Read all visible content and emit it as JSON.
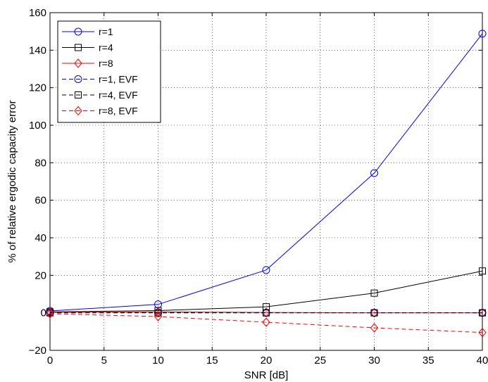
{
  "chart_data": {
    "type": "line",
    "xlabel": "SNR [dB]",
    "ylabel": "% of relative ergodic capacity error",
    "xlim": [
      0,
      40
    ],
    "ylim": [
      -20,
      160
    ],
    "xticks": [
      0,
      5,
      10,
      15,
      20,
      25,
      30,
      35,
      40
    ],
    "yticks": [
      -20,
      0,
      20,
      40,
      60,
      80,
      100,
      120,
      140,
      160
    ],
    "xtick_labels": [
      "0",
      "5",
      "10",
      "15",
      "20",
      "25",
      "30",
      "35",
      "40"
    ],
    "ytick_labels": [
      "−20",
      "0",
      "20",
      "40",
      "60",
      "80",
      "100",
      "120",
      "140",
      "160"
    ],
    "grid": true,
    "legend_position": "top-left",
    "x": [
      0,
      10,
      20,
      30,
      40
    ],
    "series": [
      {
        "name": "r=1",
        "values": [
          1.0,
          4.5,
          22.8,
          74.5,
          148.8
        ],
        "color": "#0000ff",
        "marker": "circle",
        "dashed": false
      },
      {
        "name": "r=4",
        "values": [
          0.5,
          1.2,
          3.2,
          10.5,
          22.3
        ],
        "color": "#000000",
        "marker": "square",
        "dashed": false
      },
      {
        "name": "r=8",
        "values": [
          0.3,
          0.5,
          0.2,
          0.0,
          0.0
        ],
        "color": "#ff0000",
        "marker": "diamond",
        "dashed": false
      },
      {
        "name": "r=1, EVF",
        "values": [
          0.0,
          0.0,
          0.0,
          0.0,
          0.0
        ],
        "color": "#0000ff",
        "marker": "circle",
        "dashed": true
      },
      {
        "name": "r=4, EVF",
        "values": [
          0.0,
          0.0,
          0.0,
          0.0,
          0.0
        ],
        "color": "#000000",
        "marker": "square",
        "dashed": true
      },
      {
        "name": "r=8, EVF",
        "values": [
          -0.5,
          -2.0,
          -5.0,
          -8.0,
          -10.5
        ],
        "color": "#ff0000",
        "marker": "diamond",
        "dashed": true
      }
    ]
  }
}
